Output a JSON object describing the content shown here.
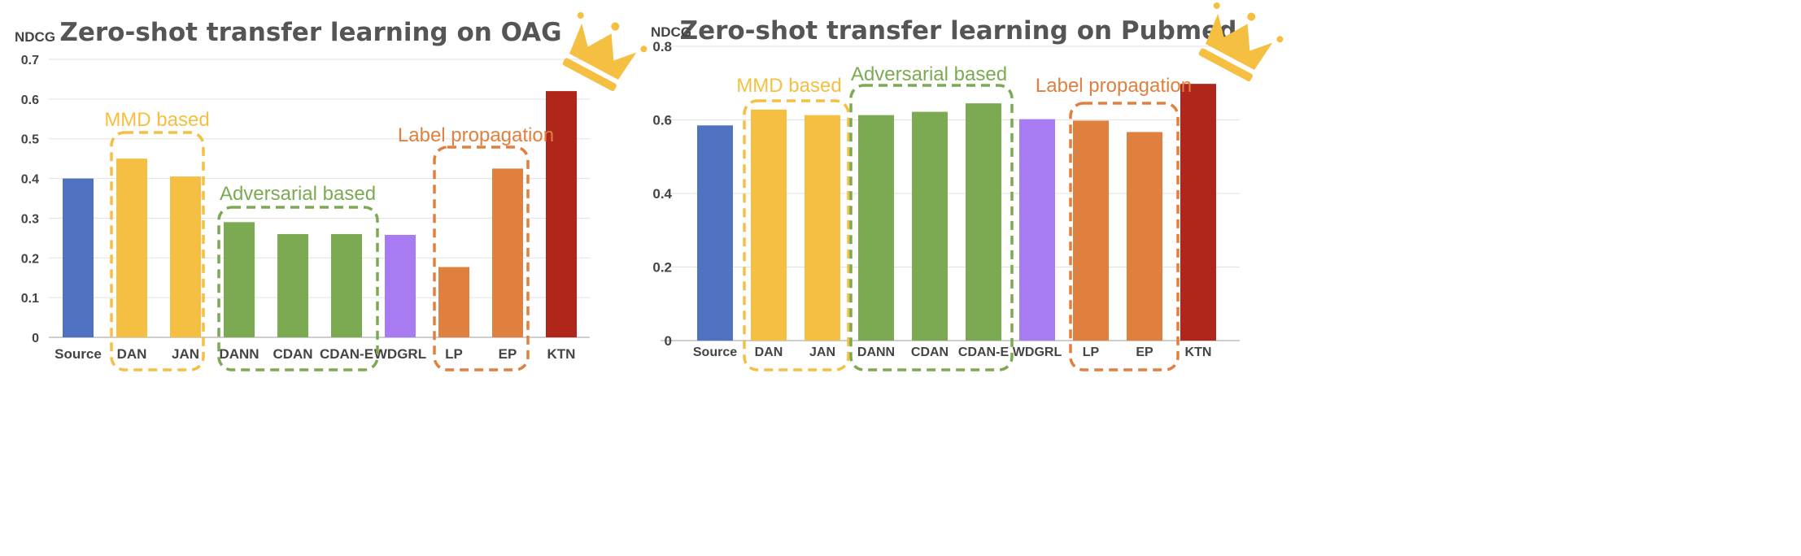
{
  "chart_data": [
    {
      "type": "bar",
      "title": "Zero-shot transfer learning on OAG",
      "ylabel": "NDCG",
      "xlabel": "",
      "ylim": [
        0,
        0.7
      ],
      "yticks": [
        "0",
        "0.1",
        "0.2",
        "0.3",
        "0.4",
        "0.5",
        "0.6",
        "0.7"
      ],
      "categories": [
        "Source",
        "DAN",
        "JAN",
        "DANN",
        "CDAN",
        "CDAN-E",
        "WDGRL",
        "LP",
        "EP",
        "KTN"
      ],
      "values": [
        0.4,
        0.45,
        0.405,
        0.29,
        0.26,
        0.26,
        0.258,
        0.177,
        0.425,
        0.62
      ],
      "bar_colors": [
        "#4F73C0",
        "#F5BF41",
        "#F5BF41",
        "#7CAA52",
        "#7CAA52",
        "#7CAA52",
        "#A97BF3",
        "#E0803F",
        "#E0803F",
        "#B0261B"
      ],
      "grid": true,
      "annotations": [
        {
          "label": "MMD based",
          "color": "#F5BF41",
          "from": 1,
          "to": 2
        },
        {
          "label": "Adversarial based",
          "color": "#7CAA52",
          "from": 3,
          "to": 5
        },
        {
          "label": "Label propagation",
          "color": "#E0803F",
          "from": 7,
          "to": 8
        }
      ]
    },
    {
      "type": "bar",
      "title": "Zero-shot transfer learning on Pubmed",
      "ylabel": "NDCG",
      "xlabel": "",
      "ylim": [
        0,
        0.8
      ],
      "yticks": [
        "0",
        "0.2",
        "0.4",
        "0.6",
        "0.8"
      ],
      "categories": [
        "Source",
        "DAN",
        "JAN",
        "DANN",
        "CDAN",
        "CDAN-E",
        "WDGRL",
        "LP",
        "EP",
        "KTN"
      ],
      "values": [
        0.585,
        0.628,
        0.613,
        0.613,
        0.622,
        0.645,
        0.602,
        0.598,
        0.567,
        0.698
      ],
      "bar_colors": [
        "#4F73C0",
        "#F5BF41",
        "#F5BF41",
        "#7CAA52",
        "#7CAA52",
        "#7CAA52",
        "#A97BF3",
        "#E0803F",
        "#E0803F",
        "#B0261B"
      ],
      "grid": true,
      "annotations": [
        {
          "label": "MMD based",
          "color": "#F5BF41",
          "from": 1,
          "to": 2
        },
        {
          "label": "Adversarial based",
          "color": "#7CAA52",
          "from": 3,
          "to": 5
        },
        {
          "label": "Label propagation",
          "color": "#E0803F",
          "from": 7,
          "to": 8
        }
      ]
    }
  ],
  "crown_icon_color": "#F5BF41"
}
